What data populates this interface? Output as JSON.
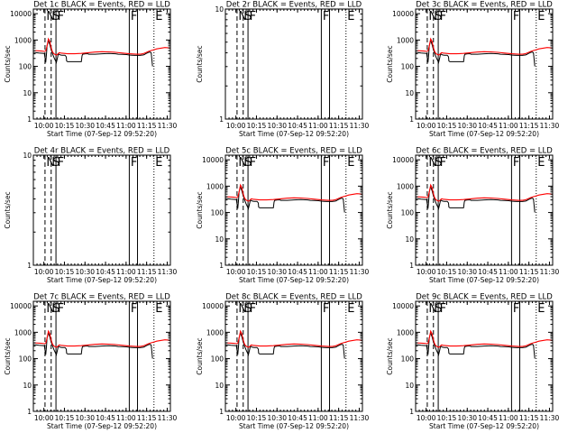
{
  "chart_data": [
    {
      "type": "line",
      "title": "Det 1c BLACK = Events, RED = LLD",
      "has_data": true
    },
    {
      "type": "line",
      "title": "Det 2r BLACK = Events, RED = LLD",
      "has_data": false
    },
    {
      "type": "line",
      "title": "Det 3c BLACK = Events, RED = LLD",
      "has_data": true
    },
    {
      "type": "line",
      "title": "Det 4r BLACK = Events, RED = LLD",
      "has_data": false
    },
    {
      "type": "line",
      "title": "Det 5c BLACK = Events, RED = LLD",
      "has_data": true
    },
    {
      "type": "line",
      "title": "Det 6c BLACK = Events, RED = LLD",
      "has_data": true
    },
    {
      "type": "line",
      "title": "Det 7c BLACK = Events, RED = LLD",
      "has_data": true
    },
    {
      "type": "line",
      "title": "Det 8c BLACK = Events, RED = LLD",
      "has_data": true
    },
    {
      "type": "line",
      "title": "Det 9c BLACK = Events, RED = LLD",
      "has_data": true
    }
  ],
  "shared": {
    "xlabel": "Start Time (07-Sep-12 09:52:20)",
    "ylabel": "Counts/sec",
    "x_ticks": [
      "10:00",
      "10:15",
      "10:30",
      "10:45",
      "11:00",
      "11:15",
      "11:30"
    ],
    "x_tick_minutes": [
      7.67,
      22.67,
      37.67,
      52.67,
      67.67,
      82.67,
      97.67
    ],
    "xlim_minutes": [
      0,
      100
    ],
    "ylim": [
      1,
      15000
    ],
    "yscale": "log",
    "y_ticks": [
      1,
      10,
      100,
      1000,
      10000
    ],
    "y_tick_labels": [
      "1",
      "10",
      "100",
      "1000",
      "10000"
    ],
    "y_ticks_empty": [
      1,
      10
    ],
    "y_tick_labels_empty": [
      "1",
      "10"
    ],
    "ylim_empty": [
      1,
      10
    ],
    "series_colors": {
      "events": "#000000",
      "lld": "#ff0000"
    },
    "series": [
      {
        "name": "Events",
        "x": [
          0,
          2,
          4,
          6,
          8,
          9,
          9.6,
          10,
          11,
          12,
          13,
          14,
          15,
          16,
          16.8,
          17.5,
          18.2,
          19,
          20,
          21,
          22,
          23,
          23.5,
          24,
          24.3,
          25,
          27,
          30,
          33,
          35,
          35.5,
          36,
          38,
          40,
          40.3,
          41,
          45,
          50,
          55,
          60,
          62,
          65,
          68,
          70,
          72,
          74,
          76,
          78,
          79,
          80,
          81,
          82,
          83,
          84,
          85,
          86,
          87
        ],
        "y": [
          340,
          330,
          320,
          315,
          310,
          140,
          300,
          620,
          950,
          680,
          420,
          300,
          220,
          170,
          140,
          200,
          300,
          280,
          270,
          265,
          265,
          265,
          250,
          230,
          160,
          150,
          150,
          150,
          150,
          150,
          250,
          290,
          300,
          300,
          290,
          290,
          290,
          300,
          310,
          300,
          290,
          285,
          280,
          270,
          265,
          260,
          260,
          262,
          268,
          270,
          280,
          300,
          320,
          340,
          350,
          330,
          100
        ]
      },
      {
        "name": "LLD",
        "x": [
          0,
          3,
          6,
          8,
          9,
          10,
          11,
          12,
          13,
          14,
          15,
          16,
          17,
          18,
          19,
          20,
          25,
          30,
          35,
          40,
          45,
          50,
          55,
          60,
          65,
          70,
          75,
          78,
          80,
          82,
          84,
          86,
          88,
          90,
          92,
          94,
          96,
          98,
          100
        ],
        "y": [
          400,
          390,
          380,
          370,
          380,
          600,
          1100,
          900,
          500,
          350,
          300,
          280,
          270,
          300,
          330,
          320,
          300,
          300,
          310,
          330,
          350,
          360,
          355,
          340,
          320,
          300,
          290,
          290,
          300,
          330,
          370,
          400,
          430,
          460,
          480,
          500,
          520,
          510,
          490
        ]
      }
    ],
    "vlines": [
      {
        "x": 8.5,
        "style": "dashed",
        "label": "N"
      },
      {
        "x": 13.0,
        "style": "dashed",
        "label": "S"
      },
      {
        "x": 16.5,
        "style": "solid",
        "label": "F"
      },
      {
        "x": 70,
        "style": "solid",
        "label": "F"
      },
      {
        "x": 76,
        "style": "solid",
        "label": ""
      },
      {
        "x": 88,
        "style": "dotted",
        "label": "E"
      }
    ]
  }
}
